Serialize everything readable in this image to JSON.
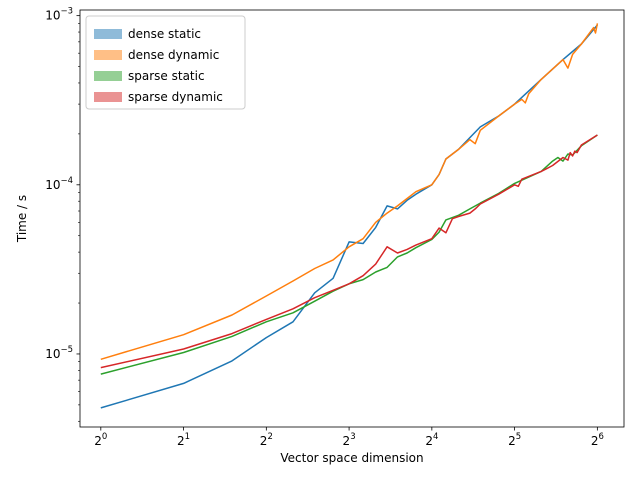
{
  "chart_data": {
    "type": "line",
    "xlabel": "Vector space dimension",
    "ylabel": "Time / s",
    "x_scale": "log2",
    "y_scale": "log10",
    "xlim": [
      0.84,
      80
    ],
    "ylim": [
      3.7e-06,
      0.00108
    ],
    "x_ticks": [
      {
        "value": 1,
        "base": "2",
        "exp": "0"
      },
      {
        "value": 2,
        "base": "2",
        "exp": "1"
      },
      {
        "value": 4,
        "base": "2",
        "exp": "2"
      },
      {
        "value": 8,
        "base": "2",
        "exp": "3"
      },
      {
        "value": 16,
        "base": "2",
        "exp": "4"
      },
      {
        "value": 32,
        "base": "2",
        "exp": "5"
      },
      {
        "value": 64,
        "base": "2",
        "exp": "6"
      }
    ],
    "y_ticks": [
      {
        "value": 1e-05,
        "base": "10",
        "exp": "−5"
      },
      {
        "value": 0.0001,
        "base": "10",
        "exp": "−4"
      },
      {
        "value": 0.001,
        "base": "10",
        "exp": "−3"
      }
    ],
    "legend_position": "top-left",
    "series": [
      {
        "name": "dense static",
        "color": "#1f77b4",
        "x": [
          1,
          2,
          3,
          4,
          5,
          6,
          7,
          8,
          9,
          10,
          11,
          12,
          13,
          14,
          16,
          17,
          18,
          20,
          24,
          28,
          32,
          40,
          48,
          56,
          64
        ],
        "values": [
          4.8e-06,
          6.7e-06,
          9.1e-06,
          1.25e-05,
          1.55e-05,
          2.3e-05,
          2.8e-05,
          4.6e-05,
          4.5e-05,
          5.6e-05,
          7.5e-05,
          7.2e-05,
          8.1e-05,
          8.8e-05,
          0.0001,
          0.000115,
          0.000142,
          0.000162,
          0.00022,
          0.000255,
          0.0003,
          0.00042,
          0.00055,
          0.00068,
          0.00088
        ]
      },
      {
        "name": "dense dynamic",
        "color": "#ff7f0e",
        "x": [
          1,
          2,
          3,
          4,
          5,
          6,
          7,
          8,
          9,
          10,
          11,
          12,
          13,
          14,
          16,
          17,
          18,
          20,
          22,
          23,
          24,
          28,
          32,
          34,
          35,
          36,
          40,
          48,
          50,
          52,
          56,
          62,
          63,
          64
        ],
        "values": [
          9.3e-06,
          1.3e-05,
          1.7e-05,
          2.2e-05,
          2.7e-05,
          3.2e-05,
          3.6e-05,
          4.3e-05,
          4.8e-05,
          6e-05,
          6.8e-05,
          7.5e-05,
          8.3e-05,
          9.1e-05,
          0.0001,
          0.000115,
          0.000142,
          0.000162,
          0.000185,
          0.000175,
          0.00021,
          0.000255,
          0.0003,
          0.00032,
          0.000305,
          0.000345,
          0.00042,
          0.00055,
          0.00049,
          0.00059,
          0.00068,
          0.00085,
          0.00079,
          0.0009
        ]
      },
      {
        "name": "sparse static",
        "color": "#2ca02c",
        "x": [
          1,
          2,
          3,
          4,
          5,
          6,
          7,
          8,
          9,
          10,
          11,
          12,
          13,
          14,
          16,
          17,
          18,
          20,
          22,
          24,
          28,
          32,
          40,
          44,
          46,
          48,
          50,
          52,
          56,
          64
        ],
        "values": [
          7.6e-06,
          1.02e-05,
          1.27e-05,
          1.55e-05,
          1.75e-05,
          2.05e-05,
          2.35e-05,
          2.6e-05,
          2.75e-05,
          3.05e-05,
          3.25e-05,
          3.75e-05,
          3.95e-05,
          4.25e-05,
          4.75e-05,
          5.25e-05,
          6.2e-05,
          6.6e-05,
          7.2e-05,
          7.8e-05,
          8.9e-05,
          0.000102,
          0.00012,
          0.000138,
          0.000145,
          0.000138,
          0.000152,
          0.00015,
          0.00017,
          0.000197
        ]
      },
      {
        "name": "sparse dynamic",
        "color": "#d62728",
        "x": [
          1,
          2,
          3,
          4,
          5,
          6,
          7,
          8,
          9,
          10,
          11,
          12,
          13,
          14,
          16,
          17,
          18,
          19,
          20,
          22,
          23,
          24,
          28,
          32,
          33,
          34,
          40,
          42,
          44,
          48,
          50,
          51,
          52,
          53,
          54,
          56,
          64
        ],
        "values": [
          8.3e-06,
          1.07e-05,
          1.32e-05,
          1.6e-05,
          1.85e-05,
          2.15e-05,
          2.38e-05,
          2.6e-05,
          2.9e-05,
          3.4e-05,
          4.3e-05,
          3.95e-05,
          4.15e-05,
          4.4e-05,
          4.8e-05,
          5.55e-05,
          5.2e-05,
          6.3e-05,
          6.5e-05,
          6.8e-05,
          7.2e-05,
          7.7e-05,
          8.8e-05,
          0.0001,
          9.8e-05,
          0.000108,
          0.00012,
          0.000125,
          0.00013,
          0.000145,
          0.00014,
          0.000155,
          0.000148,
          0.000158,
          0.000155,
          0.000172,
          0.000197
        ]
      }
    ]
  }
}
